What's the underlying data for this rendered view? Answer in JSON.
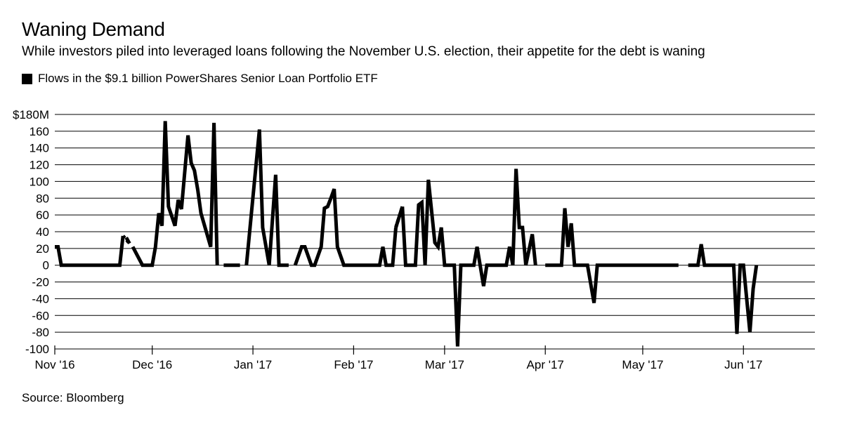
{
  "title": "Waning Demand",
  "subtitle": "While investors piled into leveraged loans following the November U.S. election, their appetite for the debt is waning",
  "legend": {
    "label": "Flows in the $9.1 billion PowerShares Senior Loan Portfolio ETF",
    "color": "#000000"
  },
  "source": "Source: Bloomberg",
  "chart_data": {
    "type": "line",
    "title": "Waning Demand",
    "ylabel": "",
    "xlabel": "",
    "ylim": [
      -100,
      180
    ],
    "grid": true,
    "legend_position": "top-left",
    "y_ticks": [
      {
        "value": 180,
        "label": "$180M"
      },
      {
        "value": 160,
        "label": "160"
      },
      {
        "value": 140,
        "label": "140"
      },
      {
        "value": 120,
        "label": "120"
      },
      {
        "value": 100,
        "label": "100"
      },
      {
        "value": 80,
        "label": "80"
      },
      {
        "value": 60,
        "label": "60"
      },
      {
        "value": 40,
        "label": "40"
      },
      {
        "value": 20,
        "label": "20"
      },
      {
        "value": 0,
        "label": "0"
      },
      {
        "value": -20,
        "label": "-20"
      },
      {
        "value": -40,
        "label": "-40"
      },
      {
        "value": -60,
        "label": "-60"
      },
      {
        "value": -80,
        "label": "-80"
      },
      {
        "value": -100,
        "label": "-100"
      }
    ],
    "x_range": [
      "2016-11-01",
      "2017-06-23"
    ],
    "x_ticks": [
      {
        "date": "2016-11-01",
        "label": "Nov '16"
      },
      {
        "date": "2016-12-01",
        "label": "Dec '16"
      },
      {
        "date": "2017-01-01",
        "label": "Jan '17"
      },
      {
        "date": "2017-02-01",
        "label": "Feb '17"
      },
      {
        "date": "2017-03-01",
        "label": "Mar '17"
      },
      {
        "date": "2017-04-01",
        "label": "Apr '17"
      },
      {
        "date": "2017-05-01",
        "label": "May '17"
      },
      {
        "date": "2017-06-01",
        "label": "Jun '17"
      }
    ],
    "series": [
      {
        "name": "Flows in the $9.1 billion PowerShares Senior Loan Portfolio ETF",
        "color": "#000000",
        "segments": [
          [
            [
              "2016-11-01",
              22
            ],
            [
              "2016-11-02",
              22
            ],
            [
              "2016-11-03",
              0
            ],
            [
              "2016-11-07",
              0
            ],
            [
              "2016-11-11",
              0
            ],
            [
              "2016-11-15",
              0
            ],
            [
              "2016-11-18",
              0
            ],
            [
              "2016-11-21",
              0
            ],
            [
              "2016-11-22",
              35
            ]
          ],
          [
            [
              "2016-11-23",
              33
            ],
            [
              "2016-11-24",
              26
            ]
          ],
          [
            [
              "2016-11-25",
              22
            ],
            [
              "2016-11-28",
              0
            ],
            [
              "2016-11-30",
              0
            ],
            [
              "2016-12-01",
              0
            ],
            [
              "2016-12-02",
              22
            ],
            [
              "2016-12-03",
              62
            ],
            [
              "2016-12-04",
              47
            ],
            [
              "2016-12-05",
              172
            ],
            [
              "2016-12-06",
              70
            ],
            [
              "2016-12-08",
              47
            ],
            [
              "2016-12-09",
              78
            ],
            [
              "2016-12-10",
              67
            ],
            [
              "2016-12-12",
              155
            ],
            [
              "2016-12-13",
              122
            ],
            [
              "2016-12-14",
              113
            ],
            [
              "2016-12-15",
              90
            ],
            [
              "2016-12-16",
              62
            ],
            [
              "2016-12-19",
              22
            ],
            [
              "2016-12-20",
              170
            ],
            [
              "2016-12-21",
              0
            ]
          ],
          [
            [
              "2016-12-23",
              0
            ],
            [
              "2016-12-28",
              0
            ]
          ],
          [
            [
              "2016-12-30",
              0
            ],
            [
              "2017-01-03",
              162
            ],
            [
              "2017-01-04",
              45
            ],
            [
              "2017-01-06",
              0
            ],
            [
              "2017-01-08",
              108
            ],
            [
              "2017-01-09",
              0
            ],
            [
              "2017-01-10",
              0
            ],
            [
              "2017-01-12",
              0
            ]
          ],
          [
            [
              "2017-01-14",
              0
            ],
            [
              "2017-01-16",
              22
            ],
            [
              "2017-01-17",
              22
            ],
            [
              "2017-01-19",
              0
            ],
            [
              "2017-01-20",
              0
            ],
            [
              "2017-01-22",
              22
            ],
            [
              "2017-01-23",
              68
            ],
            [
              "2017-01-24",
              70
            ],
            [
              "2017-01-25",
              80
            ],
            [
              "2017-01-26",
              91
            ],
            [
              "2017-01-27",
              22
            ],
            [
              "2017-01-29",
              0
            ],
            [
              "2017-02-01",
              0
            ],
            [
              "2017-02-06",
              0
            ],
            [
              "2017-02-09",
              0
            ],
            [
              "2017-02-10",
              22
            ],
            [
              "2017-02-11",
              0
            ],
            [
              "2017-02-13",
              0
            ],
            [
              "2017-02-14",
              45
            ]
          ],
          [
            [
              "2017-02-14",
              45
            ],
            [
              "2017-02-16",
              70
            ]
          ],
          [
            [
              "2017-02-16",
              70
            ],
            [
              "2017-02-17",
              0
            ],
            [
              "2017-02-20",
              0
            ],
            [
              "2017-02-21",
              72
            ],
            [
              "2017-02-22",
              75
            ],
            [
              "2017-02-23",
              0
            ],
            [
              "2017-02-24",
              102
            ],
            [
              "2017-02-26",
              27
            ],
            [
              "2017-02-27",
              22
            ],
            [
              "2017-02-28",
              45
            ],
            [
              "2017-03-01",
              0
            ],
            [
              "2017-03-02",
              0
            ],
            [
              "2017-03-03",
              0
            ],
            [
              "2017-03-04",
              0
            ],
            [
              "2017-03-05",
              -97
            ],
            [
              "2017-03-06",
              0
            ],
            [
              "2017-03-10",
              0
            ],
            [
              "2017-03-11",
              22
            ],
            [
              "2017-03-13",
              -25
            ],
            [
              "2017-03-14",
              0
            ],
            [
              "2017-03-19",
              0
            ],
            [
              "2017-03-20",
              0
            ],
            [
              "2017-03-21",
              22
            ],
            [
              "2017-03-22",
              0
            ],
            [
              "2017-03-23",
              115
            ],
            [
              "2017-03-24",
              45
            ],
            [
              "2017-03-25",
              45
            ],
            [
              "2017-03-26",
              0
            ],
            [
              "2017-03-28",
              37
            ],
            [
              "2017-03-29",
              0
            ]
          ],
          [
            [
              "2017-04-01",
              0
            ],
            [
              "2017-04-06",
              0
            ],
            [
              "2017-04-07",
              68
            ],
            [
              "2017-04-08",
              22
            ],
            [
              "2017-04-09",
              50
            ],
            [
              "2017-04-10",
              0
            ],
            [
              "2017-04-14",
              0
            ],
            [
              "2017-04-16",
              -45
            ],
            [
              "2017-04-17",
              0
            ],
            [
              "2017-04-22",
              0
            ],
            [
              "2017-04-26",
              0
            ],
            [
              "2017-05-01",
              0
            ],
            [
              "2017-05-06",
              0
            ],
            [
              "2017-05-12",
              0
            ]
          ],
          [
            [
              "2017-05-15",
              0
            ],
            [
              "2017-05-18",
              0
            ],
            [
              "2017-05-19",
              25
            ],
            [
              "2017-05-20",
              0
            ],
            [
              "2017-05-24",
              0
            ],
            [
              "2017-05-28",
              0
            ],
            [
              "2017-05-29",
              0
            ],
            [
              "2017-05-30",
              -82
            ],
            [
              "2017-05-31",
              0
            ],
            [
              "2017-06-01",
              0
            ],
            [
              "2017-06-03",
              -80
            ],
            [
              "2017-06-04",
              -28
            ],
            [
              "2017-06-05",
              0
            ]
          ]
        ],
        "dotted_gaps": [
          [
            [
              "2016-11-22",
              35
            ],
            [
              "2016-11-24",
              26
            ]
          ],
          [
            [
              "2017-02-14",
              45
            ],
            [
              "2017-02-16",
              70
            ]
          ]
        ]
      }
    ]
  }
}
